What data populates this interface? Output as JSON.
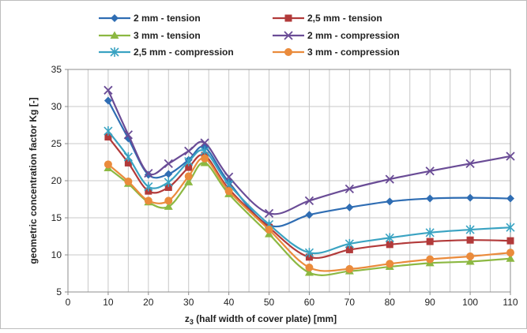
{
  "chart_data": {
    "type": "line",
    "title": "",
    "xlabel_main": "z",
    "xlabel_sub": "3",
    "xlabel_rest": " (half width of cover plate) [mm]",
    "ylabel": "geometric concentration factor Kg [-]",
    "xlim": [
      0,
      110
    ],
    "ylim": [
      5,
      35
    ],
    "x_ticks": [
      "0",
      "10",
      "20",
      "30",
      "40",
      "50",
      "60",
      "70",
      "80",
      "90",
      "100",
      "110"
    ],
    "y_ticks": [
      "5",
      "10",
      "15",
      "20",
      "25",
      "30",
      "35"
    ],
    "grid": true,
    "legend_position": "top",
    "x": [
      10,
      15,
      20,
      25,
      30,
      34,
      40,
      50,
      60,
      70,
      80,
      90,
      100,
      110
    ],
    "series": [
      {
        "name": "2 mm - tension",
        "color": "#2f6db3",
        "marker": "diamond",
        "values": [
          30.8,
          25.7,
          20.8,
          20.9,
          22.8,
          24.5,
          19.8,
          14.0,
          15.4,
          16.4,
          17.2,
          17.6,
          17.7,
          17.6
        ]
      },
      {
        "name": "2,5 mm - tension",
        "color": "#b23a3a",
        "marker": "square",
        "values": [
          25.9,
          22.4,
          18.6,
          19.1,
          21.8,
          23.4,
          18.9,
          13.7,
          9.7,
          10.7,
          11.4,
          11.8,
          12.0,
          11.9
        ]
      },
      {
        "name": "3 mm - tension",
        "color": "#8cb842",
        "marker": "triangle",
        "values": [
          21.7,
          19.6,
          17.1,
          16.5,
          19.8,
          22.4,
          18.2,
          12.8,
          7.6,
          7.8,
          8.4,
          8.9,
          9.1,
          9.5
        ]
      },
      {
        "name": "2 mm - compression",
        "color": "#6a4c96",
        "marker": "x",
        "values": [
          32.2,
          26.2,
          21.0,
          22.3,
          24.0,
          25.1,
          20.5,
          15.6,
          17.3,
          18.9,
          20.2,
          21.3,
          22.3,
          23.3
        ]
      },
      {
        "name": "2,5 mm - compression",
        "color": "#3aa3c2",
        "marker": "asterisk",
        "values": [
          26.7,
          23.2,
          19.2,
          19.8,
          22.6,
          24.0,
          19.5,
          14.1,
          10.3,
          11.5,
          12.3,
          13.0,
          13.4,
          13.7
        ]
      },
      {
        "name": "3 mm - compression",
        "color": "#ea8b3c",
        "marker": "circle",
        "values": [
          22.2,
          19.9,
          17.3,
          17.3,
          20.6,
          23.0,
          18.6,
          13.4,
          8.3,
          8.1,
          8.8,
          9.4,
          9.8,
          10.3
        ]
      }
    ]
  }
}
